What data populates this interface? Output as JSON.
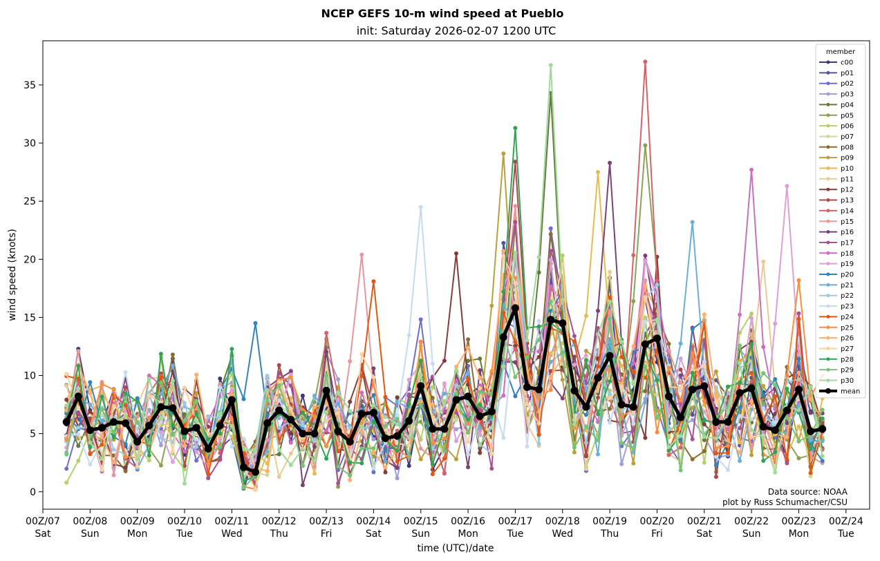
{
  "chart_data": {
    "type": "line",
    "title": "NCEP GEFS 10-m wind speed at Pueblo",
    "subtitle": "init: Saturday 2026-02-07 1200 UTC",
    "xlabel": "time (UTC)/date",
    "ylabel": "wind speed (knots)",
    "ylim": [
      -1.5,
      38.8
    ],
    "xlim_hours": [
      -12,
      408
    ],
    "x_hours_start": 0,
    "x_step_hours": 6,
    "y_ticks": [
      0,
      5,
      10,
      15,
      20,
      25,
      30,
      35
    ],
    "x_tick_labels": [
      {
        "time": "00Z/07",
        "day": "Sat"
      },
      {
        "time": "00Z/08",
        "day": "Sun"
      },
      {
        "time": "00Z/09",
        "day": "Mon"
      },
      {
        "time": "00Z/10",
        "day": "Tue"
      },
      {
        "time": "00Z/11",
        "day": "Wed"
      },
      {
        "time": "00Z/12",
        "day": "Thu"
      },
      {
        "time": "00Z/13",
        "day": "Fri"
      },
      {
        "time": "00Z/14",
        "day": "Sat"
      },
      {
        "time": "00Z/15",
        "day": "Sun"
      },
      {
        "time": "00Z/16",
        "day": "Mon"
      },
      {
        "time": "00Z/17",
        "day": "Tue"
      },
      {
        "time": "00Z/18",
        "day": "Wed"
      },
      {
        "time": "00Z/19",
        "day": "Thu"
      },
      {
        "time": "00Z/20",
        "day": "Fri"
      },
      {
        "time": "00Z/21",
        "day": "Sat"
      },
      {
        "time": "00Z/22",
        "day": "Sun"
      },
      {
        "time": "00Z/23",
        "day": "Mon"
      },
      {
        "time": "00Z/24",
        "day": "Tue"
      }
    ],
    "legend_title": "member",
    "legend_position": "upper-right",
    "mean": {
      "name": "mean",
      "color": "#000000",
      "values": [
        6.0,
        8.2,
        5.3,
        5.5,
        6.0,
        5.9,
        4.3,
        5.7,
        7.3,
        7.2,
        5.2,
        5.5,
        3.7,
        5.7,
        7.9,
        2.1,
        1.7,
        5.9,
        7.0,
        6.2,
        5.0,
        5.0,
        8.7,
        5.2,
        4.3,
        6.7,
        6.8,
        4.6,
        4.8,
        6.1,
        9.1,
        5.4,
        5.4,
        7.9,
        8.2,
        6.5,
        6.9,
        13.3,
        15.8,
        9.0,
        8.8,
        14.8,
        14.5,
        8.7,
        7.3,
        9.8,
        11.7,
        7.5,
        7.3,
        12.7,
        13.2,
        8.2,
        6.4,
        8.8,
        9.1,
        6.0,
        6.0,
        8.5,
        8.9,
        5.6,
        5.3,
        7.0,
        8.8,
        5.2,
        5.4
      ]
    },
    "members": [
      {
        "name": "c00",
        "color": "#393b79"
      },
      {
        "name": "p01",
        "color": "#5254a3"
      },
      {
        "name": "p02",
        "color": "#6b6ecf"
      },
      {
        "name": "p03",
        "color": "#9c9ede"
      },
      {
        "name": "p04",
        "color": "#637939"
      },
      {
        "name": "p05",
        "color": "#8ca252"
      },
      {
        "name": "p06",
        "color": "#b5cf6b"
      },
      {
        "name": "p07",
        "color": "#cedb9c"
      },
      {
        "name": "p08",
        "color": "#8c6d31"
      },
      {
        "name": "p09",
        "color": "#bd9e39"
      },
      {
        "name": "p10",
        "color": "#e7ba52"
      },
      {
        "name": "p11",
        "color": "#e7cb94"
      },
      {
        "name": "p12",
        "color": "#843c39"
      },
      {
        "name": "p13",
        "color": "#ad494a"
      },
      {
        "name": "p14",
        "color": "#d6616b"
      },
      {
        "name": "p15",
        "color": "#e7969c"
      },
      {
        "name": "p16",
        "color": "#7b4173"
      },
      {
        "name": "p17",
        "color": "#a55194"
      },
      {
        "name": "p18",
        "color": "#ce6dbd"
      },
      {
        "name": "p19",
        "color": "#de9ed6"
      },
      {
        "name": "p20",
        "color": "#3182bd"
      },
      {
        "name": "p21",
        "color": "#6baed6"
      },
      {
        "name": "p22",
        "color": "#9ecae1"
      },
      {
        "name": "p23",
        "color": "#c6dbef"
      },
      {
        "name": "p24",
        "color": "#e6550d"
      },
      {
        "name": "p25",
        "color": "#fd8d3c"
      },
      {
        "name": "p26",
        "color": "#fdae6b"
      },
      {
        "name": "p27",
        "color": "#fdd0a2"
      },
      {
        "name": "p28",
        "color": "#31a354"
      },
      {
        "name": "p29",
        "color": "#74c476"
      },
      {
        "name": "p30",
        "color": "#a1d99b"
      }
    ],
    "member_peaks": [
      {
        "member": "p30",
        "step": 41,
        "value": 36.7
      },
      {
        "member": "p14",
        "step": 49,
        "value": 37.0
      },
      {
        "member": "p04",
        "step": 41,
        "value": 34.3
      },
      {
        "member": "p28",
        "step": 38,
        "value": 31.3
      },
      {
        "member": "p05",
        "step": 49,
        "value": 29.8
      },
      {
        "member": "p09",
        "step": 37,
        "value": 29.1
      },
      {
        "member": "p16",
        "step": 46,
        "value": 28.3
      },
      {
        "member": "p13",
        "step": 38,
        "value": 28.4
      },
      {
        "member": "p18",
        "step": 58,
        "value": 27.7
      },
      {
        "member": "p10",
        "step": 45,
        "value": 27.5
      },
      {
        "member": "p19",
        "step": 61,
        "value": 26.3
      },
      {
        "member": "p23",
        "step": 30,
        "value": 24.5
      },
      {
        "member": "p21",
        "step": 53,
        "value": 23.2
      },
      {
        "member": "p15",
        "step": 25,
        "value": 20.4
      },
      {
        "member": "p12",
        "step": 33,
        "value": 20.5
      },
      {
        "member": "p24",
        "step": 26,
        "value": 18.1
      },
      {
        "member": "p25",
        "step": 62,
        "value": 18.2
      },
      {
        "member": "p11",
        "step": 59,
        "value": 19.8
      },
      {
        "member": "p20",
        "step": 16,
        "value": 14.5
      },
      {
        "member": "p08",
        "step": 9,
        "value": 11.8
      }
    ]
  },
  "credits": {
    "line1": "Data source: NOAA",
    "line2": "plot by Russ Schumacher/CSU"
  }
}
